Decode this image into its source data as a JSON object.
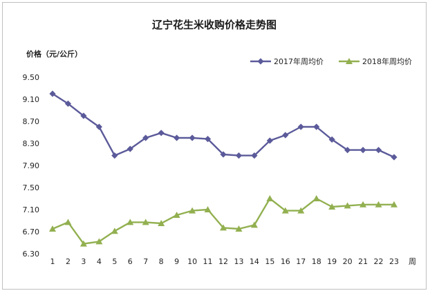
{
  "chart_data": {
    "type": "line",
    "title": "辽宁花生米收购价格走势图",
    "ylabel": "价格（元/公斤）",
    "xlabel": "周",
    "ylim": [
      6.3,
      9.5
    ],
    "yticks": [
      "9.50",
      "9.10",
      "8.70",
      "8.30",
      "7.90",
      "7.50",
      "7.10",
      "6.70",
      "6.30"
    ],
    "x": [
      "1",
      "2",
      "3",
      "4",
      "5",
      "6",
      "7",
      "8",
      "9",
      "10",
      "11",
      "12",
      "13",
      "14",
      "15",
      "16",
      "17",
      "18",
      "19",
      "20",
      "21",
      "22",
      "23"
    ],
    "grid": false,
    "legend_position": "top-right",
    "series": [
      {
        "name": "2017年周均价",
        "color": "#5b5a9a",
        "marker": "diamond",
        "values": [
          9.2,
          9.02,
          8.8,
          8.6,
          8.08,
          8.2,
          8.4,
          8.49,
          8.4,
          8.4,
          8.38,
          8.1,
          8.08,
          8.08,
          8.35,
          8.45,
          8.6,
          8.6,
          8.37,
          8.18,
          8.18,
          8.18,
          8.05
        ]
      },
      {
        "name": "2018年周均价",
        "color": "#92b050",
        "marker": "triangle",
        "values": [
          6.75,
          6.87,
          6.48,
          6.52,
          6.71,
          6.87,
          6.87,
          6.85,
          7.0,
          7.08,
          7.1,
          6.77,
          6.75,
          6.82,
          7.3,
          7.08,
          7.08,
          7.3,
          7.15,
          7.17,
          7.19,
          7.19,
          7.19
        ]
      }
    ]
  }
}
